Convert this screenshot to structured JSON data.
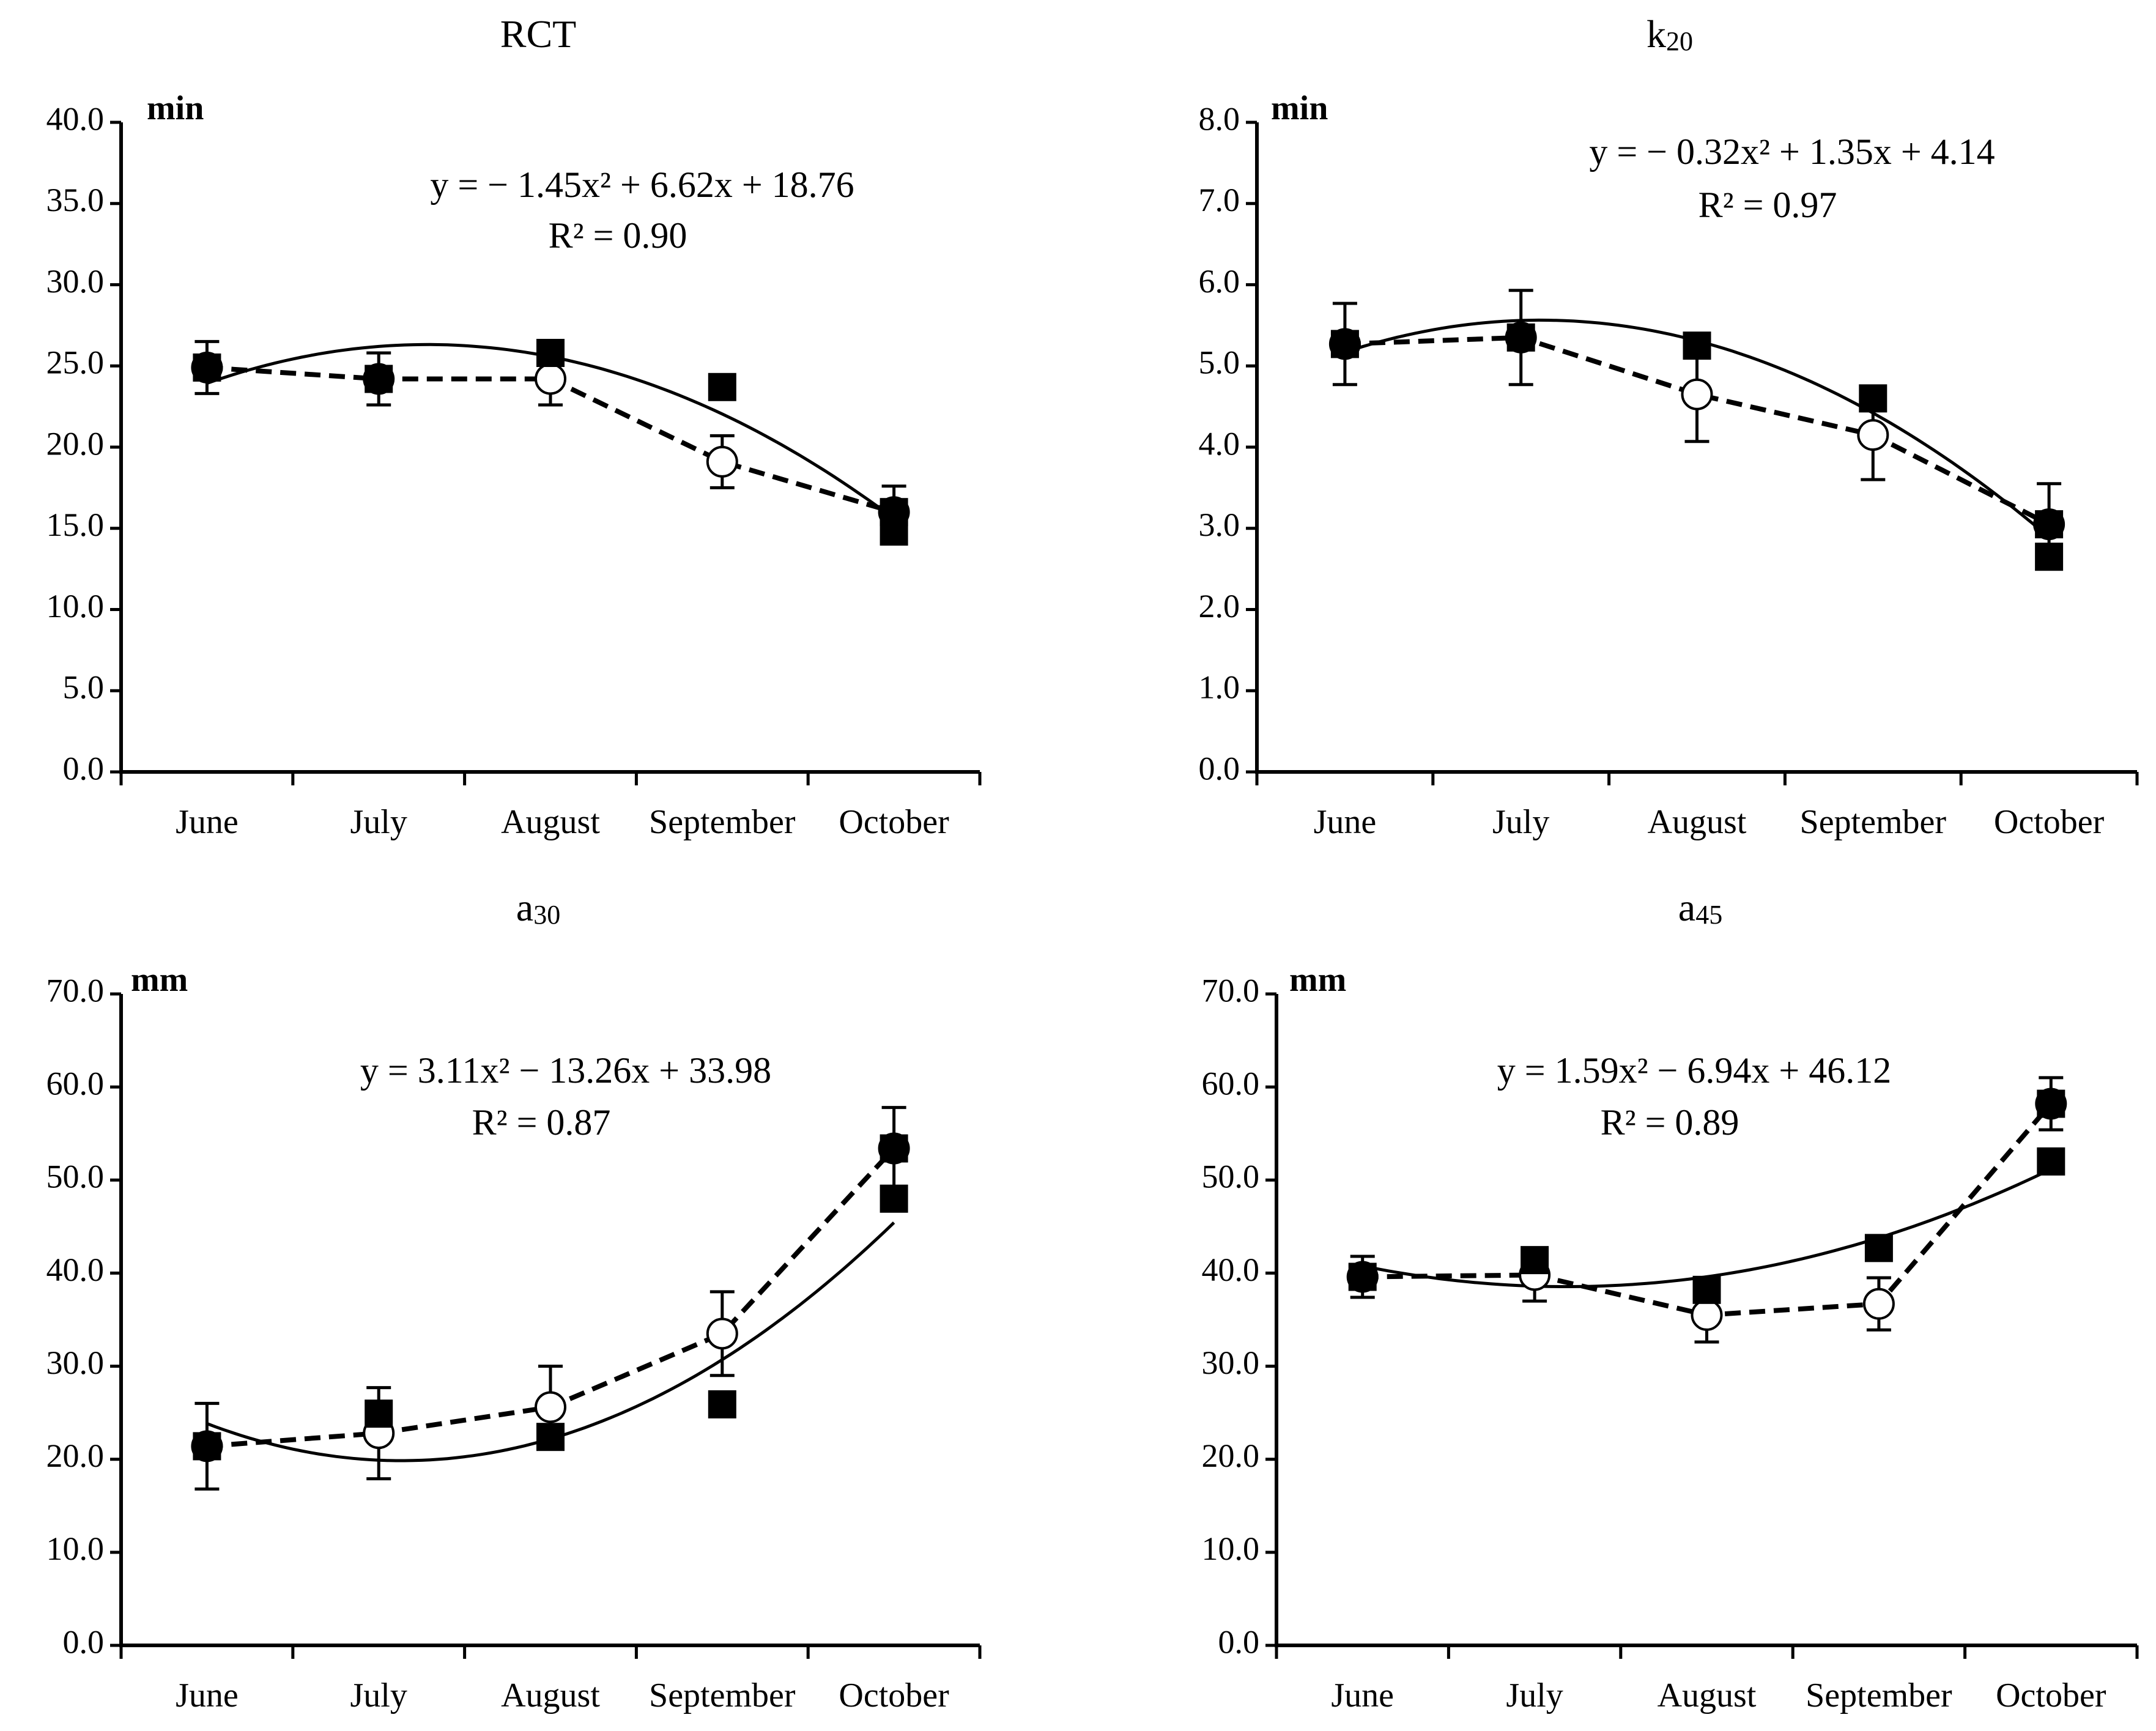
{
  "chart_data": [
    {
      "type": "line",
      "title": "RCT",
      "title_main": "RCT",
      "title_sub": "",
      "unit": "min",
      "categories": [
        "June",
        "July",
        "August",
        "September",
        "October"
      ],
      "ylim": [
        0,
        40
      ],
      "ytick_step": 5,
      "yticks": [
        "0.0",
        "5.0",
        "10.0",
        "15.0",
        "20.0",
        "25.0",
        "30.0",
        "35.0",
        "40.0"
      ],
      "equation": "y = − 1.45x² + 6.62x + 18.76",
      "r2": "R² = 0.90",
      "legend": "none",
      "series": [
        {
          "name": "open-circle-dashed",
          "style": "dashed",
          "marker": "circle",
          "values": [
            24.9,
            24.2,
            24.2,
            19.1,
            16.0
          ],
          "errors": [
            1.6,
            1.6,
            1.6,
            1.6,
            1.6
          ]
        },
        {
          "name": "filled-square",
          "style": "none",
          "marker": "square",
          "x": [
            1,
            2,
            3,
            4,
            5,
            5
          ],
          "values": [
            24.9,
            24.2,
            25.8,
            23.7,
            16.0,
            14.8
          ]
        }
      ],
      "trend": {
        "a": -1.45,
        "b": 6.62,
        "c": 18.76
      }
    },
    {
      "type": "line",
      "title": "k20",
      "title_main": "k",
      "title_sub": "20",
      "unit": "min",
      "categories": [
        "June",
        "July",
        "August",
        "September",
        "October"
      ],
      "ylim": [
        0,
        8
      ],
      "ytick_step": 1,
      "yticks": [
        "0.0",
        "1.0",
        "2.0",
        "3.0",
        "4.0",
        "5.0",
        "6.0",
        "7.0",
        "8.0"
      ],
      "equation": "y = − 0.32x² + 1.35x + 4.14",
      "r2": "R² = 0.97",
      "legend": "none",
      "series": [
        {
          "name": "open-circle-dashed",
          "style": "dashed",
          "marker": "circle",
          "values": [
            5.27,
            5.35,
            4.65,
            4.15,
            3.05
          ],
          "errors": [
            0.5,
            0.58,
            0.58,
            0.55,
            0.5
          ]
        },
        {
          "name": "filled-square",
          "style": "none",
          "marker": "square",
          "x": [
            1,
            2,
            3,
            4,
            5,
            5
          ],
          "values": [
            5.27,
            5.35,
            5.25,
            4.6,
            3.05,
            2.65
          ]
        }
      ],
      "trend": {
        "a": -0.32,
        "b": 1.35,
        "c": 4.14
      }
    },
    {
      "type": "line",
      "title": "a30",
      "title_main": "a",
      "title_sub": "30",
      "unit": "mm",
      "categories": [
        "June",
        "July",
        "August",
        "September",
        "October"
      ],
      "ylim": [
        0,
        70
      ],
      "ytick_step": 10,
      "yticks": [
        "0.0",
        "10.0",
        "20.0",
        "30.0",
        "40.0",
        "50.0",
        "60.0",
        "70.0"
      ],
      "equation": "y = 3.11x² − 13.26x + 33.98",
      "r2": "R² = 0.87",
      "legend": "none",
      "series": [
        {
          "name": "open-circle-dashed",
          "style": "dashed",
          "marker": "circle",
          "values": [
            21.4,
            22.8,
            25.6,
            33.5,
            53.4
          ],
          "errors": [
            4.6,
            4.9,
            4.4,
            4.5,
            4.4
          ]
        },
        {
          "name": "filled-square",
          "style": "none",
          "marker": "square",
          "x": [
            1,
            2,
            3,
            4,
            5,
            5
          ],
          "values": [
            21.4,
            24.9,
            22.4,
            25.9,
            53.4,
            48.0
          ]
        }
      ],
      "trend": {
        "a": 3.11,
        "b": -13.26,
        "c": 33.98
      }
    },
    {
      "type": "line",
      "title": "a45",
      "title_main": "a",
      "title_sub": "45",
      "unit": "mm",
      "categories": [
        "June",
        "July",
        "August",
        "September",
        "October"
      ],
      "ylim": [
        0,
        70
      ],
      "ytick_step": 10,
      "yticks": [
        "0.0",
        "10.0",
        "20.0",
        "30.0",
        "40.0",
        "50.0",
        "60.0",
        "70.0"
      ],
      "equation": "y = 1.59x² − 6.94x + 46.12",
      "r2": "R² = 0.89",
      "legend": "none",
      "series": [
        {
          "name": "open-circle-dashed",
          "style": "dashed",
          "marker": "circle",
          "values": [
            39.6,
            39.8,
            35.5,
            36.7,
            58.2
          ],
          "errors": [
            2.2,
            2.8,
            2.9,
            2.8,
            2.8
          ]
        },
        {
          "name": "filled-square",
          "style": "none",
          "marker": "square",
          "x": [
            1,
            2,
            3,
            4,
            5,
            5
          ],
          "values": [
            39.6,
            41.4,
            38.2,
            42.7,
            58.2,
            52.0
          ]
        }
      ],
      "trend": {
        "a": 1.59,
        "b": -6.94,
        "c": 46.12
      }
    }
  ]
}
